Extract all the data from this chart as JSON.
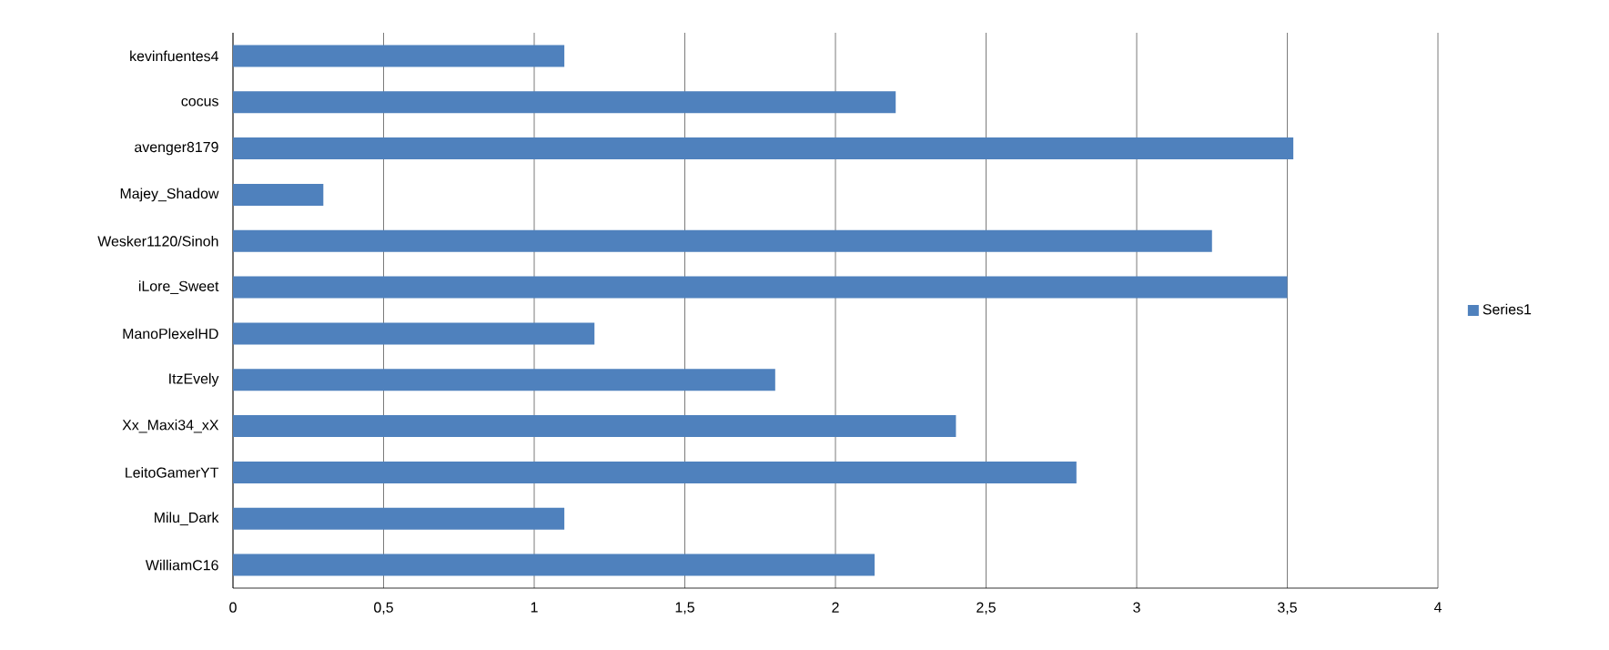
{
  "chart_data": {
    "type": "bar",
    "orientation": "horizontal",
    "categories": [
      "kevinfuentes4",
      "cocus",
      "avenger8179",
      "Majey_Shadow",
      "Wesker1120/Sinoh",
      "iLore_Sweet",
      "ManoPlexelHD",
      "ItzEvely",
      "Xx_Maxi34_xX",
      "LeitoGamerYT",
      "Milu_Dark",
      "WilliamC16"
    ],
    "series": [
      {
        "name": "Series1",
        "color": "#4f81bd",
        "values": [
          1.1,
          2.2,
          3.52,
          0.3,
          3.25,
          3.5,
          1.2,
          1.8,
          2.4,
          2.8,
          1.1,
          2.13
        ]
      }
    ],
    "xlim": [
      0,
      4
    ],
    "xticks": [
      0,
      {
        "value": 0.5,
        "label": "0,5"
      },
      1,
      {
        "value": 1.5,
        "label": "1,5"
      },
      2,
      {
        "value": 2.5,
        "label": "2,5"
      },
      3,
      {
        "value": 3.5,
        "label": "3,5"
      },
      4
    ],
    "grid": "x",
    "legend": "right"
  }
}
